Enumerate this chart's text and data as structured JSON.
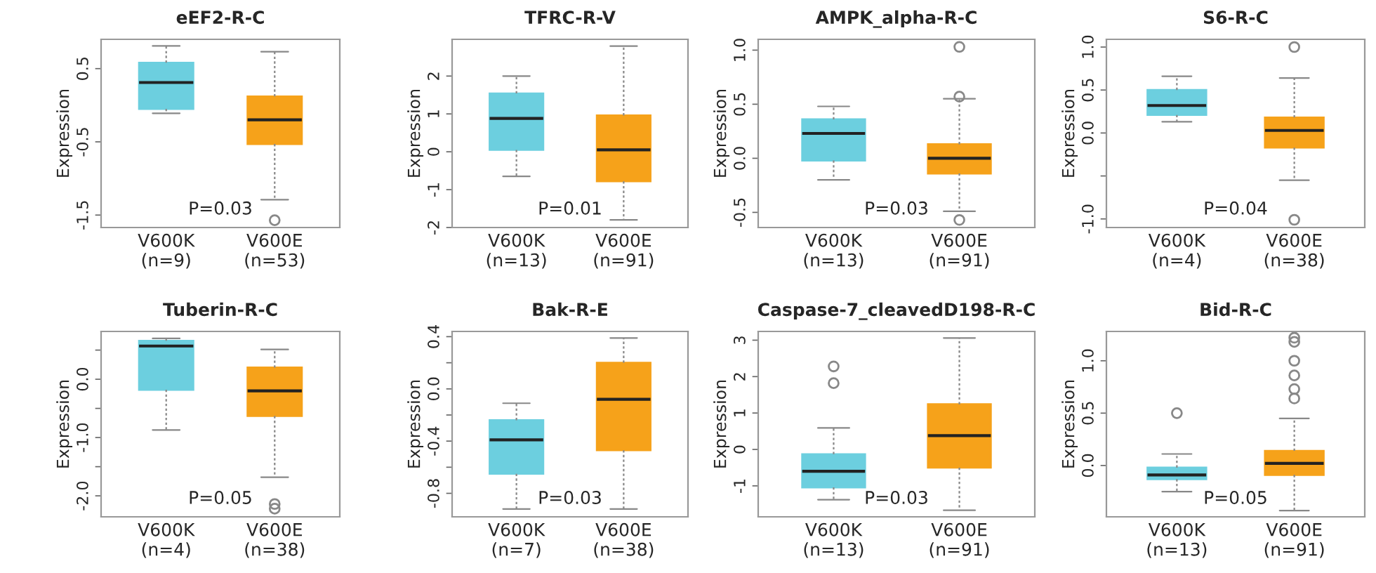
{
  "chart_data": [
    {
      "type": "box",
      "title": "eEF2-R-C",
      "ylabel": "Expression",
      "categories": [
        "V600K\n(n=9)",
        "V600E\n(n=53)"
      ],
      "colors": [
        "#6ccfdf",
        "#f6a21a"
      ],
      "ylim": [
        -1.67,
        0.9
      ],
      "yticks": [
        -1.5,
        -0.5,
        0.5
      ],
      "annotations": [
        "P=0.03"
      ],
      "grid": false,
      "legend": false,
      "boxes": [
        {
          "low": -0.11,
          "q1": -0.05,
          "median": 0.31,
          "q3": 0.58,
          "high": 0.81
        },
        {
          "low": -1.29,
          "q1": -0.53,
          "median": -0.2,
          "q3": 0.12,
          "high": 0.73,
          "outliers": [
            -1.57
          ]
        }
      ]
    },
    {
      "type": "box",
      "title": "TFRC-R-V",
      "ylabel": "Expression",
      "categories": [
        "V600K\n(n=13)",
        "V600E\n(n=91)"
      ],
      "colors": [
        "#6ccfdf",
        "#f6a21a"
      ],
      "ylim": [
        -2.0,
        2.97
      ],
      "yticks": [
        -2,
        -1,
        0,
        1,
        2
      ],
      "annotations": [
        "P=0.01"
      ],
      "grid": false,
      "legend": false,
      "boxes": [
        {
          "low": -0.65,
          "q1": 0.05,
          "median": 0.88,
          "q3": 1.54,
          "high": 2.0
        },
        {
          "low": -1.8,
          "q1": -0.78,
          "median": 0.05,
          "q3": 0.96,
          "high": 2.79
        }
      ]
    },
    {
      "type": "box",
      "title": "AMPK_alpha-R-C",
      "ylabel": "Expression",
      "categories": [
        "V600K\n(n=13)",
        "V600E\n(n=91)"
      ],
      "colors": [
        "#6ccfdf",
        "#f6a21a"
      ],
      "ylim": [
        -0.64,
        1.1
      ],
      "yticks": [
        {
          "value": -0.5,
          "label": "-0.5"
        },
        {
          "value": 0.0,
          "label": "0.0"
        },
        {
          "value": 0.5,
          "label": "0.5"
        },
        {
          "value": 1.0,
          "label": "1.0"
        }
      ],
      "annotations": [
        "P=0.03"
      ],
      "grid": false,
      "legend": false,
      "boxes": [
        {
          "low": -0.2,
          "q1": -0.02,
          "median": 0.23,
          "q3": 0.36,
          "high": 0.48
        },
        {
          "low": -0.49,
          "q1": -0.14,
          "median": 0.0,
          "q3": 0.13,
          "high": 0.55,
          "outliers": [
            1.03,
            0.57,
            -0.57
          ]
        }
      ]
    },
    {
      "type": "box",
      "title": "S6-R-C",
      "ylabel": "Expression",
      "categories": [
        "V600K\n(n=4)",
        "V600E\n(n=38)"
      ],
      "colors": [
        "#6ccfdf",
        "#f6a21a"
      ],
      "ylim": [
        -1.1,
        1.09
      ],
      "yticks": [
        {
          "value": -1.0,
          "label": "-1.0"
        },
        {
          "value": -0.5,
          "label": null
        },
        {
          "value": 0.0,
          "label": "0.0"
        },
        {
          "value": 0.5,
          "label": "0.5"
        },
        {
          "value": 1.0,
          "label": "1.0"
        }
      ],
      "annotations": [
        "P=0.04"
      ],
      "grid": false,
      "legend": false,
      "boxes": [
        {
          "low": 0.13,
          "q1": 0.21,
          "median": 0.32,
          "q3": 0.5,
          "high": 0.66
        },
        {
          "low": -0.55,
          "q1": -0.17,
          "median": 0.03,
          "q3": 0.18,
          "high": 0.64,
          "outliers": [
            1.0,
            -1.01
          ]
        }
      ]
    },
    {
      "type": "box",
      "title": "Tuberin-R-C",
      "ylabel": "Expression",
      "categories": [
        "V600K\n(n=4)",
        "V600E\n(n=38)"
      ],
      "colors": [
        "#6ccfdf",
        "#f6a21a"
      ],
      "ylim": [
        -2.36,
        0.82
      ],
      "yticks": [
        {
          "value": -2.0,
          "label": "-2.0"
        },
        {
          "value": -1.5,
          "label": null
        },
        {
          "value": -1.0,
          "label": "-1.0"
        },
        {
          "value": -0.5,
          "label": null
        },
        {
          "value": 0.0,
          "label": "0.0"
        },
        {
          "value": 0.5,
          "label": null
        }
      ],
      "annotations": [
        "P=0.05"
      ],
      "grid": false,
      "legend": false,
      "boxes": [
        {
          "low": -0.87,
          "q1": -0.18,
          "median": 0.57,
          "q3": 0.66,
          "high": 0.7
        },
        {
          "low": -1.68,
          "q1": -0.63,
          "median": -0.2,
          "q3": 0.2,
          "high": 0.51,
          "outliers": [
            -2.14,
            -2.22
          ]
        }
      ]
    },
    {
      "type": "box",
      "title": "Bak-R-E",
      "ylabel": "Expression",
      "categories": [
        "V600K\n(n=7)",
        "V600E\n(n=38)"
      ],
      "colors": [
        "#6ccfdf",
        "#f6a21a"
      ],
      "ylim": [
        -0.98,
        0.44
      ],
      "yticks": [
        {
          "value": -0.8,
          "label": "-0.8"
        },
        {
          "value": -0.6,
          "label": null
        },
        {
          "value": -0.4,
          "label": "-0.4"
        },
        {
          "value": -0.2,
          "label": null
        },
        {
          "value": 0.0,
          "label": "0.0"
        },
        {
          "value": 0.2,
          "label": null
        },
        {
          "value": 0.4,
          "label": "0.4"
        }
      ],
      "annotations": [
        "P=0.03"
      ],
      "grid": false,
      "legend": false,
      "boxes": [
        {
          "low": -0.92,
          "q1": -0.65,
          "median": -0.39,
          "q3": -0.24,
          "high": -0.11
        },
        {
          "low": -0.92,
          "q1": -0.47,
          "median": -0.08,
          "q3": 0.2,
          "high": 0.39
        }
      ]
    },
    {
      "type": "box",
      "title": "Caspase-7_cleavedD198-R-C",
      "ylabel": "Expression",
      "categories": [
        "V600K\n(n=13)",
        "V600E\n(n=91)"
      ],
      "colors": [
        "#6ccfdf",
        "#f6a21a"
      ],
      "ylim": [
        -1.85,
        3.24
      ],
      "yticks": [
        -1,
        0,
        1,
        2,
        3
      ],
      "annotations": [
        "P=0.03"
      ],
      "grid": false,
      "legend": false,
      "boxes": [
        {
          "low": -1.38,
          "q1": -1.04,
          "median": -0.6,
          "q3": -0.13,
          "high": 0.59,
          "outliers": [
            2.28,
            1.82
          ]
        },
        {
          "low": -1.67,
          "q1": -0.5,
          "median": 0.38,
          "q3": 1.24,
          "high": 3.06
        }
      ]
    },
    {
      "type": "box",
      "title": "Bid-R-C",
      "ylabel": "Expression",
      "categories": [
        "V600K\n(n=13)",
        "V600E\n(n=91)"
      ],
      "colors": [
        "#6ccfdf",
        "#f6a21a"
      ],
      "ylim": [
        -0.49,
        1.28
      ],
      "yticks": [
        {
          "value": 0.0,
          "label": "0.0"
        },
        {
          "value": 0.5,
          "label": "0.5"
        },
        {
          "value": 1.0,
          "label": "1.0"
        }
      ],
      "annotations": [
        "P=0.05"
      ],
      "grid": false,
      "legend": false,
      "boxes": [
        {
          "low": -0.25,
          "q1": -0.13,
          "median": -0.09,
          "q3": -0.02,
          "high": 0.11,
          "outliers": [
            0.5
          ]
        },
        {
          "low": -0.43,
          "q1": -0.09,
          "median": 0.02,
          "q3": 0.14,
          "high": 0.45,
          "outliers": [
            1.22,
            1.18,
            1.0,
            0.86,
            0.73,
            0.64
          ]
        }
      ]
    }
  ]
}
